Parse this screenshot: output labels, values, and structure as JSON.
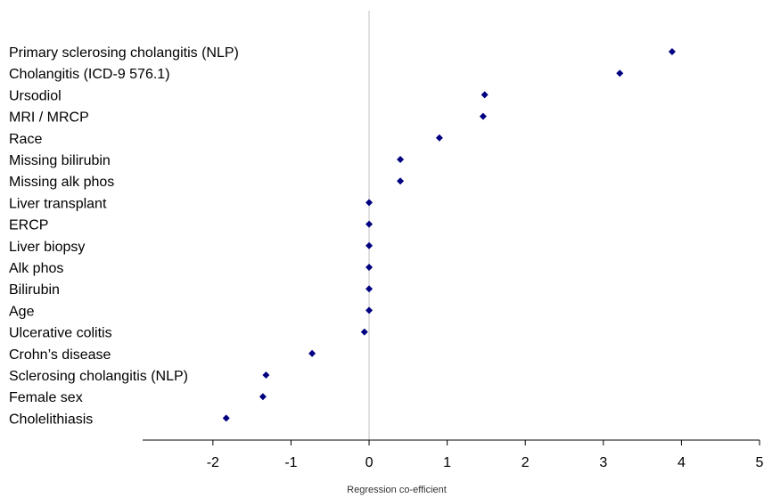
{
  "chart_data": {
    "type": "scatter",
    "xlabel": "Regression co-efficient",
    "ylabel": "",
    "xlim": [
      -2.9,
      5
    ],
    "x_ticks": [
      "-2",
      "-1",
      "0",
      "1",
      "2",
      "3",
      "4",
      "5"
    ],
    "grid": false,
    "marker_color": "#000080",
    "axis_color": "#000000",
    "zero_line_color": "#c0c0c0",
    "points": [
      {
        "label": "Primary sclerosing cholangitis (NLP)",
        "x": 3.88
      },
      {
        "label": "Cholangitis (ICD-9 576.1)",
        "x": 3.21
      },
      {
        "label": "Ursodiol",
        "x": 1.48
      },
      {
        "label": "MRI / MRCP",
        "x": 1.46
      },
      {
        "label": "Race",
        "x": 0.9
      },
      {
        "label": "Missing bilirubin",
        "x": 0.4
      },
      {
        "label": "Missing alk phos",
        "x": 0.4
      },
      {
        "label": "Liver transplant",
        "x": 0.0
      },
      {
        "label": "ERCP",
        "x": 0.0
      },
      {
        "label": "Liver biopsy",
        "x": 0.0
      },
      {
        "label": "Alk phos",
        "x": 0.0
      },
      {
        "label": "Bilirubin",
        "x": 0.0
      },
      {
        "label": "Age",
        "x": 0.0
      },
      {
        "label": "Ulcerative colitis",
        "x": -0.06
      },
      {
        "label": "Crohn’s disease",
        "x": -0.73
      },
      {
        "label": "Sclerosing cholangitis (NLP)",
        "x": -1.32
      },
      {
        "label": "Female sex",
        "x": -1.36
      },
      {
        "label": "Cholelithiasis",
        "x": -1.83
      }
    ]
  }
}
